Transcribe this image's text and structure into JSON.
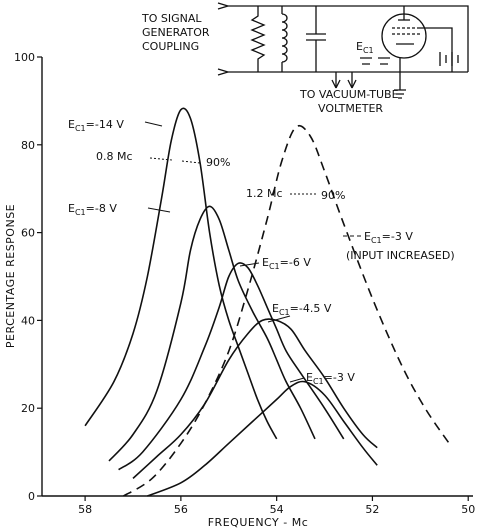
{
  "chart_data": {
    "type": "line",
    "title": "",
    "xlabel": "FREQUENCY - Mc",
    "ylabel": "PERCENTAGE RESPONSE",
    "xlim": [
      58.9,
      49.9
    ],
    "ylim": [
      0,
      100
    ],
    "x_ticks": [
      58,
      56,
      54,
      52,
      50
    ],
    "y_ticks": [
      0,
      20,
      40,
      60,
      80,
      100
    ],
    "grid": false,
    "legend": "none",
    "series": [
      {
        "name": "Ec1 = -14 V",
        "style": "solid",
        "x": [
          58.0,
          57.4,
          57.0,
          56.7,
          56.4,
          56.2,
          56.0,
          55.8,
          55.6,
          55.4,
          55.2,
          55.0,
          54.8,
          54.6,
          54.4,
          54.2,
          54.0
        ],
        "y": [
          16,
          26,
          37,
          50,
          68,
          81,
          88,
          86,
          76,
          60,
          48,
          40,
          34,
          28,
          22,
          17,
          13
        ]
      },
      {
        "name": "Ec1 = -8 V",
        "style": "solid",
        "x": [
          57.5,
          57.0,
          56.5,
          56.0,
          55.8,
          55.6,
          55.4,
          55.2,
          55.0,
          54.8,
          54.5,
          54.2,
          54.0,
          53.8,
          53.5,
          53.2
        ],
        "y": [
          8,
          14,
          24,
          44,
          56,
          63,
          66,
          63,
          56,
          49,
          42,
          36,
          31,
          26,
          20,
          13
        ]
      },
      {
        "name": "Ec1 = -6 V",
        "style": "solid",
        "x": [
          57.3,
          56.8,
          56.0,
          55.5,
          55.2,
          55.0,
          54.8,
          54.6,
          54.4,
          54.2,
          54.0,
          53.8,
          53.5,
          53.0,
          52.6
        ],
        "y": [
          6,
          10,
          22,
          34,
          43,
          50,
          53,
          52,
          48,
          43,
          38,
          33,
          28,
          20,
          13
        ]
      },
      {
        "name": "Ec1 = -4.5 V",
        "style": "solid",
        "x": [
          57.0,
          56.5,
          56.0,
          55.5,
          55.0,
          54.6,
          54.3,
          54.0,
          53.7,
          53.4,
          53.0,
          52.6,
          52.2,
          51.9
        ],
        "y": [
          4,
          9,
          14,
          21,
          31,
          37,
          40,
          40,
          38,
          33,
          27,
          20,
          14,
          11
        ]
      },
      {
        "name": "Ec1 = -3 V",
        "style": "solid",
        "x": [
          56.7,
          56.0,
          55.5,
          55.0,
          54.5,
          54.0,
          53.7,
          53.4,
          53.0,
          52.6,
          52.2,
          51.9
        ],
        "y": [
          0,
          3,
          7,
          12,
          17,
          22,
          25,
          26,
          23,
          17,
          11,
          7
        ]
      },
      {
        "name": "Ec1 = -3 V (INPUT INCREASED)",
        "style": "dashed",
        "x": [
          57.2,
          56.6,
          56.0,
          55.5,
          55.0,
          54.6,
          54.2,
          53.9,
          53.6,
          53.3,
          53.0,
          52.6,
          52.0,
          51.4,
          50.9,
          50.4
        ],
        "y": [
          0,
          4,
          12,
          21,
          33,
          47,
          63,
          76,
          84,
          82,
          74,
          62,
          45,
          30,
          20,
          12
        ]
      }
    ],
    "annotations": [
      {
        "text": "0.8 Mc",
        "width_at": "90%"
      },
      {
        "text": "1.2 Mc",
        "width_at": "90%"
      }
    ]
  },
  "labels": {
    "ec_14": "E",
    "ec_14_val": "=-14 V",
    "ec_8": "E",
    "ec_8_val": "=-8 V",
    "ec_6": "E",
    "ec_6_val": "=-6 V",
    "ec_45": "E",
    "ec_45_val": "=-4.5 V",
    "ec_3": "E",
    "ec_3_val": "=-3 V",
    "ec_3i": "E",
    "ec_3i_val": "=-3 V",
    "ec_sub": "C1",
    "input_increased": "(INPUT INCREASED)",
    "bw_08": "0.8 Mc",
    "bw_08_pct": "90%",
    "bw_12": "1.2 Mc",
    "bw_12_pct": "90%"
  },
  "schematic": {
    "signal_gen_line1": "TO SIGNAL",
    "signal_gen_line2": "GENERATOR",
    "signal_gen_line3": "COUPLING",
    "ec_label": "E",
    "ec_label_sub": "C1",
    "vtvm_line1": "TO VACUUM-TUBE",
    "vtvm_line2": "VOLTMETER"
  }
}
